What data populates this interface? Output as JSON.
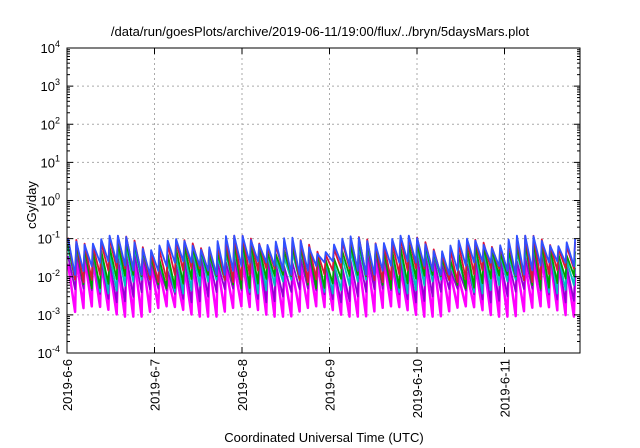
{
  "chart_data": {
    "type": "line",
    "title": "/data/run/goesPlots/archive/2019-06-11/19:00/flux/../bryn/5daysMars.plot",
    "xlabel": "Coordinated Universal Time (UTC)",
    "ylabel": "cGy/day",
    "yscale": "log",
    "ylim": [
      0.0001,
      10000
    ],
    "xlim_days": [
      0,
      5.82
    ],
    "grid": true,
    "legend": "none",
    "x_ticks": [
      {
        "label": "2019-6-6",
        "day": 0
      },
      {
        "label": "2019-6-7",
        "day": 1
      },
      {
        "label": "2019-6-8",
        "day": 2
      },
      {
        "label": "2019-6-9",
        "day": 3
      },
      {
        "label": "2019-6-10",
        "day": 4
      },
      {
        "label": "2019-6-11",
        "day": 5
      }
    ],
    "y_ticks": [
      {
        "base": "10",
        "exp": "-4",
        "value": 0.0001
      },
      {
        "base": "10",
        "exp": "-3",
        "value": 0.001
      },
      {
        "base": "10",
        "exp": "-2",
        "value": 0.01
      },
      {
        "base": "10",
        "exp": "-1",
        "value": 0.1
      },
      {
        "base": "10",
        "exp": "0",
        "value": 1
      },
      {
        "base": "10",
        "exp": "1",
        "value": 10
      },
      {
        "base": "10",
        "exp": "2",
        "value": 100
      },
      {
        "base": "10",
        "exp": "3",
        "value": 1000
      },
      {
        "base": "10",
        "exp": "4",
        "value": 10000
      }
    ],
    "pattern": {
      "sawtooth_period_days": 0.095,
      "note_values": "peaks ~0.03-0.11, troughs ~0.001-0.02 cGy/day, repeating sawtooth"
    },
    "series": [
      {
        "color": "#ff00ff",
        "peak": 0.022,
        "trough": 0.0012
      },
      {
        "color": "#9400d3",
        "peak": 0.03,
        "trough": 0.0035
      },
      {
        "color": "#00bfbf",
        "peak": 0.045,
        "trough": 0.006
      },
      {
        "color": "#00a000",
        "peak": 0.055,
        "trough": 0.008
      },
      {
        "color": "#dc143c",
        "peak": 0.08,
        "trough": 0.012
      },
      {
        "color": "#3050ff",
        "peak": 0.085,
        "trough": 0.018
      }
    ]
  }
}
